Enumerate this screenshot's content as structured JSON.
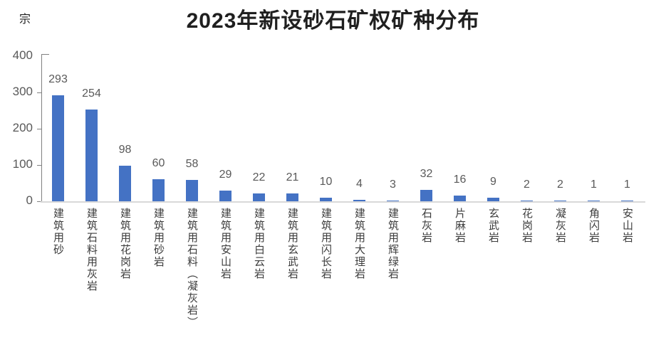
{
  "chart": {
    "title": "2023年新设砂石矿权矿种分布",
    "unit": "宗"
  },
  "colors": {
    "bar": "#4472C4",
    "value_label": "#595959",
    "tick_label": "#595959",
    "category_label": "#3d3d3d",
    "title": "#1f1f1f",
    "axis_line": "#808080",
    "baseline": "#d9d9d9",
    "background": "#ffffff"
  },
  "chart_data": {
    "type": "bar",
    "title": "2023年新设砂石矿权矿种分布",
    "ylabel": "宗",
    "xlabel": "",
    "ylim": [
      0,
      400
    ],
    "yticks": [
      0,
      100,
      200,
      300,
      400
    ],
    "grid": false,
    "legend": false,
    "data_labels": true,
    "bar_color": "#4472C4",
    "categories": [
      "建筑用砂",
      "建筑石料用灰岩",
      "建筑用花岗岩",
      "建筑用砂岩",
      "建筑用石料（凝灰岩）",
      "建筑用安山岩",
      "建筑用白云岩",
      "建筑用玄武岩",
      "建筑用闪长岩",
      "建筑用大理岩",
      "建筑用辉绿岩",
      "石灰岩",
      "片麻岩",
      "玄武岩",
      "花岗岩",
      "凝灰岩",
      "角闪岩",
      "安山岩"
    ],
    "values": [
      293,
      254,
      98,
      60,
      58,
      29,
      22,
      21,
      10,
      4,
      3,
      32,
      16,
      9,
      2,
      2,
      1,
      1
    ]
  }
}
